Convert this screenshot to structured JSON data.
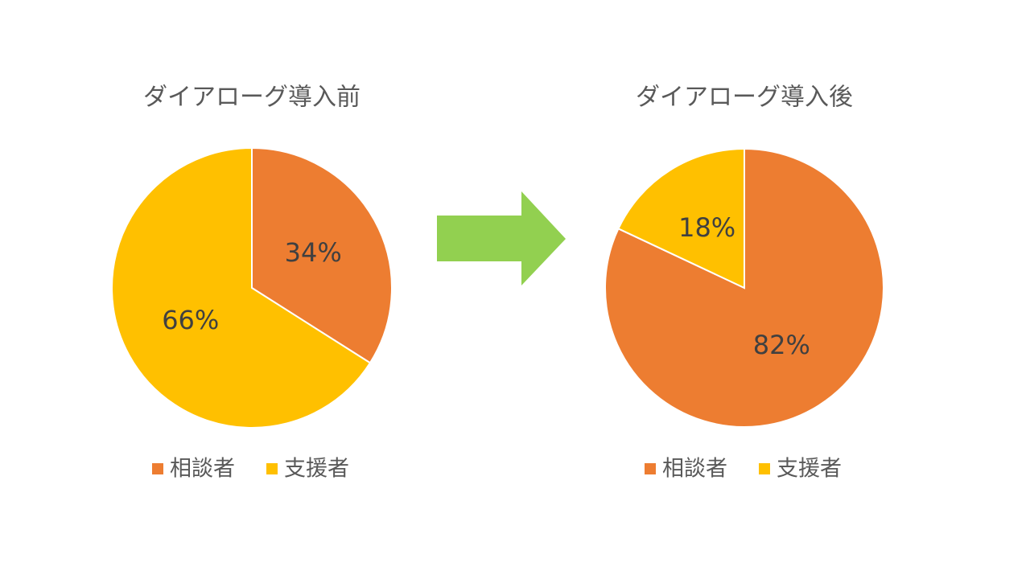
{
  "chart_data": [
    {
      "type": "pie",
      "title": "ダイアローグ導入前",
      "categories": [
        "相談者",
        "支援者"
      ],
      "values": [
        34,
        66
      ],
      "value_labels": [
        "34%",
        "66%"
      ],
      "colors": [
        "#ED7D31",
        "#FFC000"
      ]
    },
    {
      "type": "pie",
      "title": "ダイアローグ導入後",
      "categories": [
        "相談者",
        "支援者"
      ],
      "values": [
        82,
        18
      ],
      "value_labels": [
        "82%",
        "18%"
      ],
      "colors": [
        "#ED7D31",
        "#FFC000"
      ]
    }
  ]
}
